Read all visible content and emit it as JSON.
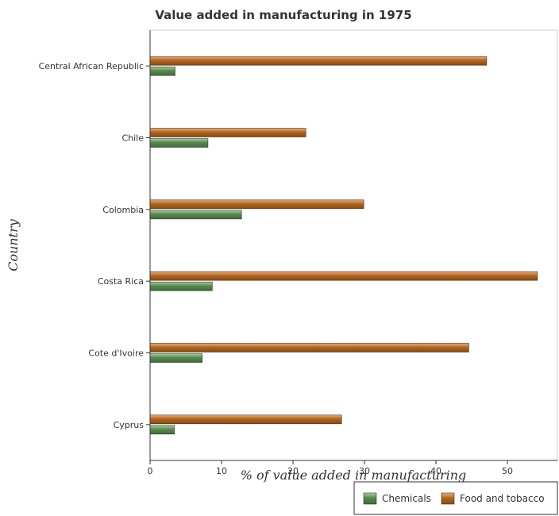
{
  "chart_data": {
    "type": "bar",
    "orientation": "horizontal",
    "title": "Value added in manufacturing in 1975",
    "xlabel": "% of value added in manufacturing",
    "ylabel": "Country",
    "categories": [
      "Central African Republic",
      "Chile",
      "Colombia",
      "Costa Rica",
      "Cote d'Ivoire",
      "Cyprus"
    ],
    "series": [
      {
        "name": "Chemicals",
        "color": "#5a8a50",
        "values": [
          3.5,
          8.1,
          12.8,
          8.7,
          7.3,
          3.4
        ]
      },
      {
        "name": "Food and tobacco",
        "color": "#b5651d",
        "values": [
          47.1,
          21.8,
          29.9,
          54.2,
          44.6,
          26.8
        ]
      }
    ],
    "xlim": [
      0,
      57
    ],
    "xticks": [
      0,
      10,
      20,
      30,
      40,
      50
    ],
    "grid": false,
    "legend": "bottom-right"
  }
}
